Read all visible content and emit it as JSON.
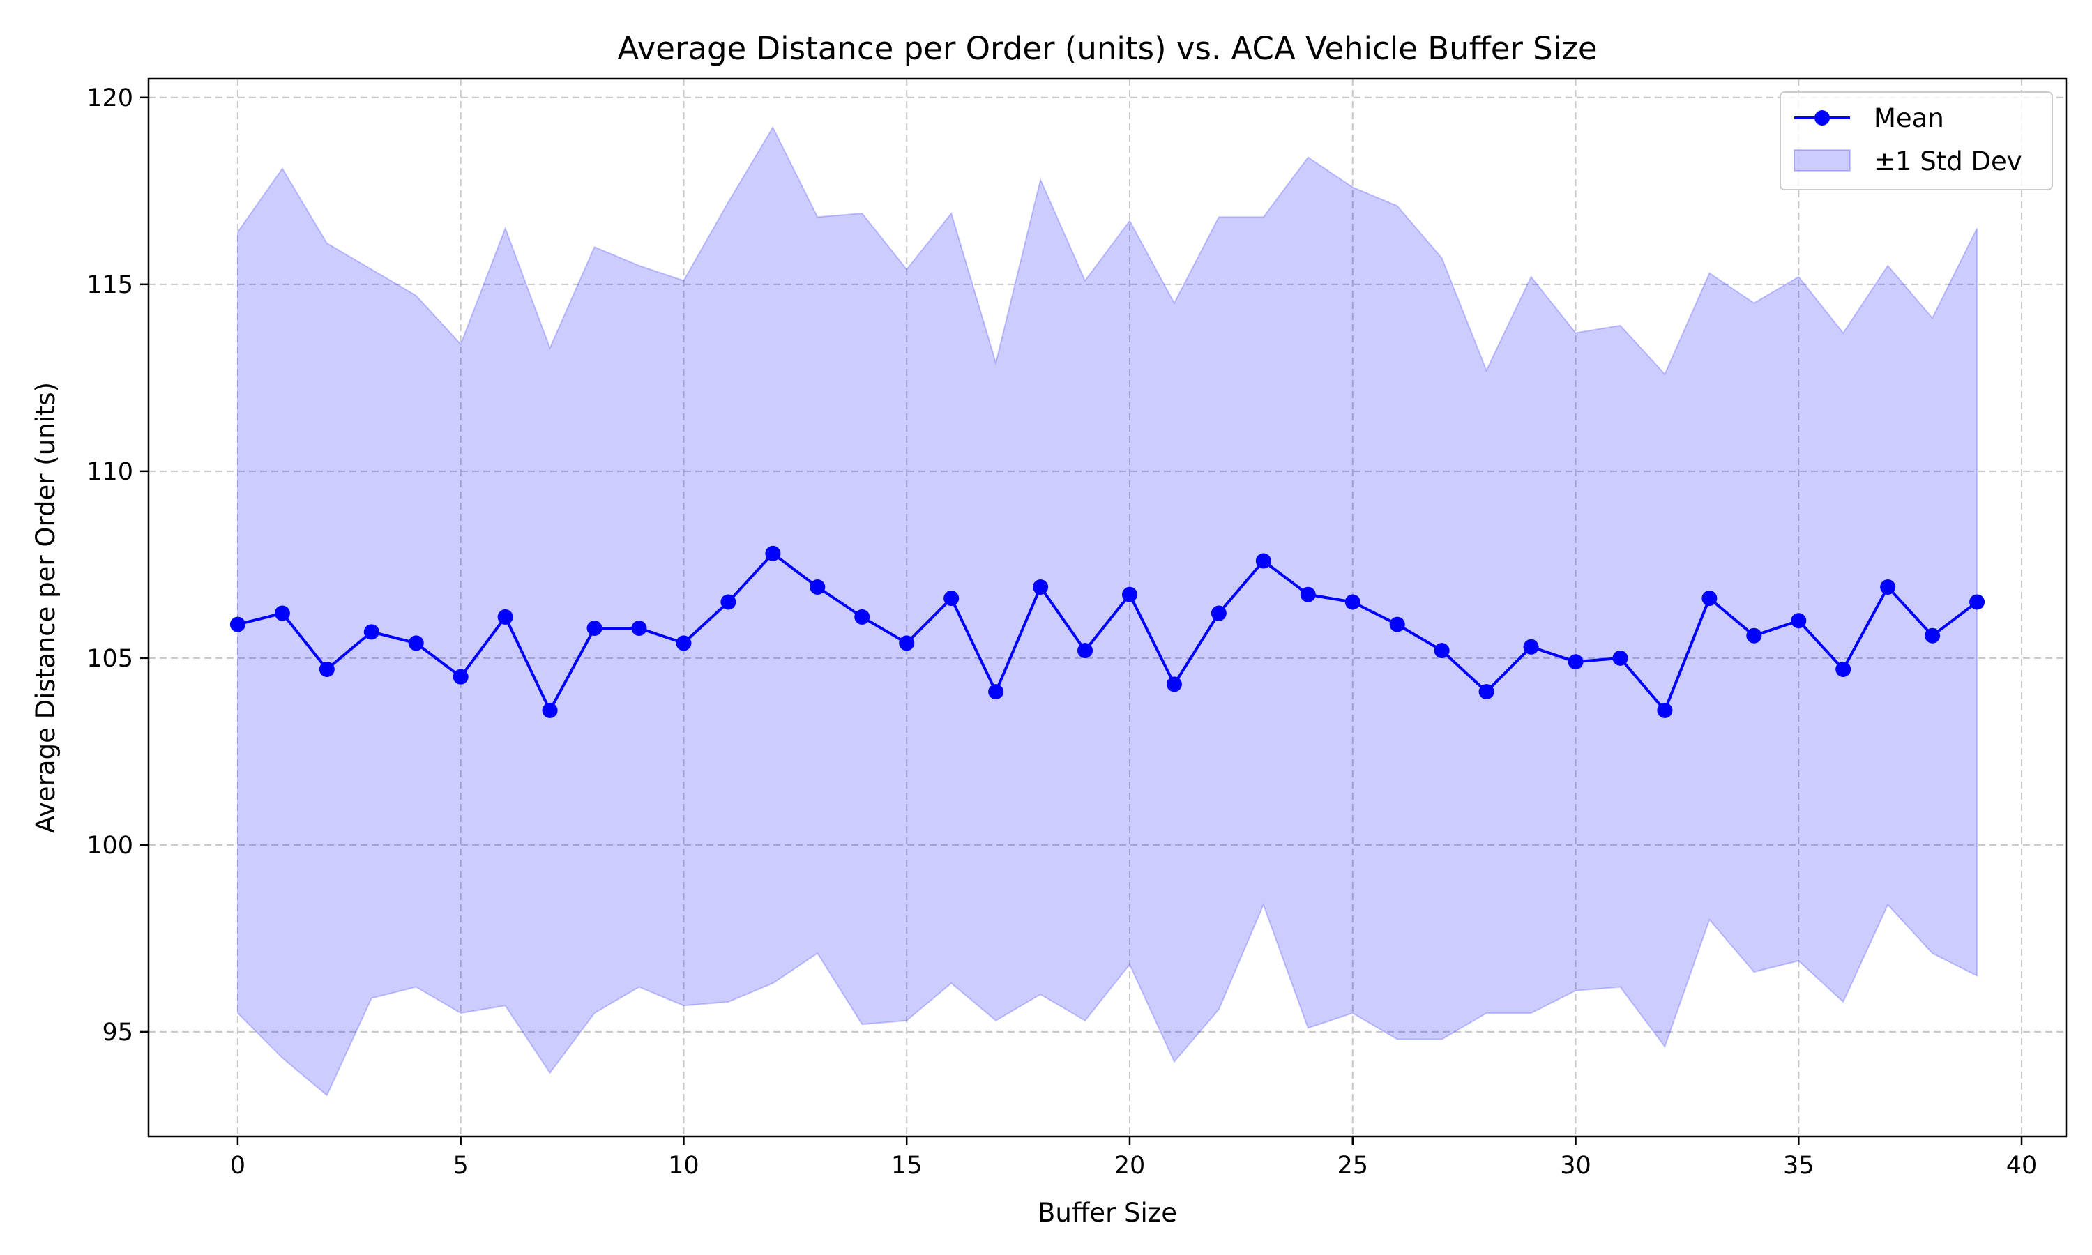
{
  "chart_data": {
    "type": "line",
    "title": "Average Distance per Order (units) vs. ACA Vehicle Buffer Size",
    "xlabel": "Buffer Size",
    "ylabel": "Average Distance per Order (units)",
    "xlim": [
      -2,
      41
    ],
    "ylim": [
      92.2,
      120.5
    ],
    "xticks": [
      0,
      5,
      10,
      15,
      20,
      25,
      30,
      35,
      40
    ],
    "yticks": [
      95,
      100,
      105,
      110,
      115,
      120
    ],
    "grid": true,
    "legend_position": "top-right",
    "x": [
      0,
      1,
      2,
      3,
      4,
      5,
      6,
      7,
      8,
      9,
      10,
      11,
      12,
      13,
      14,
      15,
      16,
      17,
      18,
      19,
      20,
      21,
      22,
      23,
      24,
      25,
      26,
      27,
      28,
      29,
      30,
      31,
      32,
      33,
      34,
      35,
      36,
      37,
      38,
      39
    ],
    "series": [
      {
        "name": "Mean",
        "kind": "line",
        "color": "#0000ff",
        "values": [
          105.9,
          106.2,
          104.7,
          105.7,
          105.4,
          104.5,
          106.1,
          103.6,
          105.8,
          105.8,
          105.4,
          106.5,
          107.8,
          106.9,
          106.1,
          105.4,
          106.6,
          104.1,
          106.9,
          105.2,
          106.7,
          104.3,
          106.2,
          107.6,
          106.7,
          106.5,
          105.9,
          105.2,
          104.1,
          105.3,
          104.9,
          105.0,
          103.6,
          106.6,
          105.6,
          106.0,
          104.7,
          106.9,
          105.6,
          106.5
        ]
      },
      {
        "name": "±1 Std Dev",
        "kind": "band",
        "color": "#0000ff",
        "upper": [
          116.4,
          118.1,
          116.1,
          115.4,
          114.7,
          113.4,
          116.5,
          113.3,
          116.0,
          115.5,
          115.1,
          117.2,
          119.2,
          116.8,
          116.9,
          115.4,
          116.9,
          112.9,
          117.8,
          115.1,
          116.7,
          114.5,
          116.8,
          116.8,
          118.4,
          117.6,
          117.1,
          115.7,
          112.7,
          115.2,
          113.7,
          113.9,
          112.6,
          115.3,
          114.5,
          115.2,
          113.7,
          115.5,
          114.1,
          116.5
        ],
        "lower": [
          95.5,
          94.3,
          93.3,
          95.9,
          96.2,
          95.5,
          95.7,
          93.9,
          95.5,
          96.2,
          95.7,
          95.8,
          96.3,
          97.1,
          95.2,
          95.3,
          96.3,
          95.3,
          96.0,
          95.3,
          96.8,
          94.2,
          95.6,
          98.4,
          95.1,
          95.5,
          94.8,
          94.8,
          95.5,
          95.5,
          96.1,
          96.2,
          94.6,
          98.0,
          96.6,
          96.9,
          95.8,
          98.4,
          97.1,
          96.5
        ]
      }
    ]
  }
}
